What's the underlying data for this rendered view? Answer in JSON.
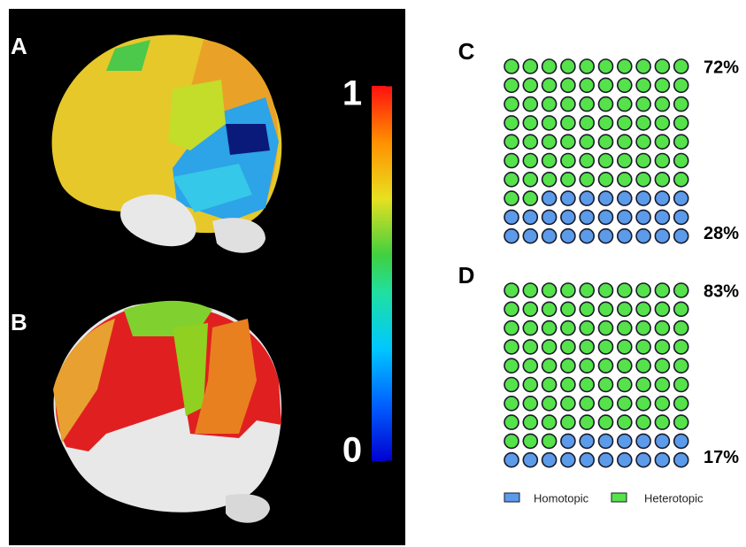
{
  "panel_labels": [
    "A",
    "B"
  ],
  "chart_data": [
    {
      "type": "colorbar",
      "ylim": [
        0,
        1
      ],
      "yticks": [
        1,
        0
      ]
    },
    {
      "type": "waffle",
      "label": "C",
      "series": [
        {
          "name": "Homotopic",
          "color": "#5b9bea",
          "values": [
            28
          ],
          "value_labels": [
            "28%"
          ]
        },
        {
          "name": "Heterotopic",
          "color": "#55e24a",
          "values": [
            72
          ],
          "value_labels": [
            "72%"
          ]
        }
      ]
    },
    {
      "type": "waffle",
      "label": "D",
      "series": [
        {
          "name": "Homotopic",
          "color": "#5b9bea",
          "values": [
            17
          ],
          "value_labels": [
            "17%"
          ]
        },
        {
          "name": "Heterotopic",
          "color": "#55e24a",
          "values": [
            83
          ],
          "value_labels": [
            "83%"
          ]
        }
      ]
    }
  ]
}
